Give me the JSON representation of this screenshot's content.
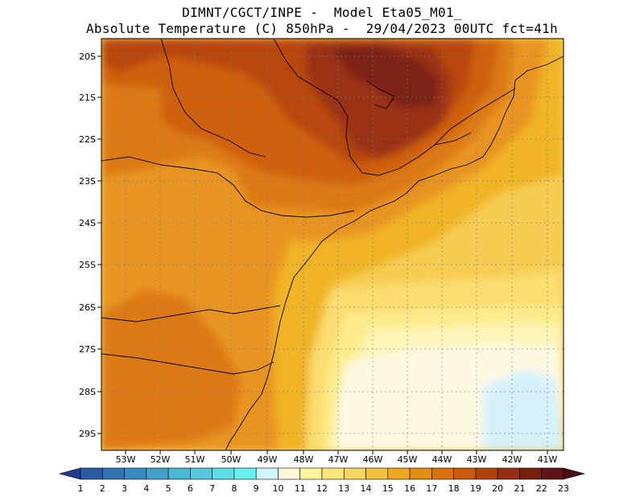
{
  "header": {
    "line1": "DIMNT/CGCT/INPE -  Model Eta05_M01_",
    "line2": "Absolute Temperature (C) 850hPa -  29/04/2023 00UTC fct=41h"
  },
  "map": {
    "lat_labels": [
      "20S",
      "21S",
      "22S",
      "23S",
      "24S",
      "25S",
      "26S",
      "27S",
      "28S",
      "29S"
    ],
    "lon_labels": [
      "53W",
      "52W",
      "51W",
      "50W",
      "49W",
      "48W",
      "47W",
      "46W",
      "45W",
      "44W",
      "43W",
      "42W",
      "41W"
    ]
  },
  "colorbar": {
    "labels": [
      "1",
      "2",
      "3",
      "4",
      "5",
      "6",
      "7",
      "8",
      "9",
      "10",
      "11",
      "12",
      "13",
      "14",
      "15",
      "16",
      "17",
      "18",
      "19",
      "20",
      "21",
      "22",
      "23"
    ],
    "colors": [
      "#1f3c8e",
      "#2a5ca3",
      "#3273b3",
      "#3b8ac0",
      "#43a0cc",
      "#4cb6d7",
      "#56c9e0",
      "#5edce8",
      "#66f0f0",
      "#d2f4fb",
      "#fff8d8",
      "#fff3a0",
      "#fde67a",
      "#f8d55e",
      "#f3c040",
      "#eea820",
      "#e48e10",
      "#d8730c",
      "#c85a0a",
      "#b2420c",
      "#973010",
      "#7a2010",
      "#5e1418",
      "#4a0e14"
    ]
  }
}
